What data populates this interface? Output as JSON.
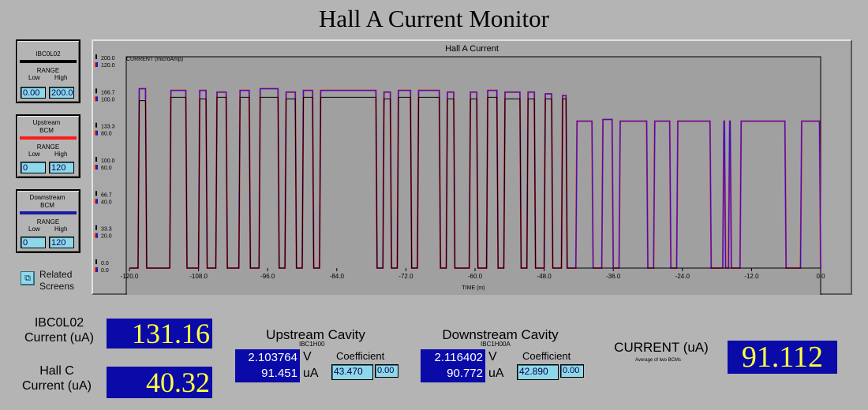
{
  "title": "Hall A Current Monitor",
  "panels": [
    {
      "name": "IBC0L02",
      "range_label": "RANGE",
      "low_label": "Low",
      "high_label": "High",
      "low": "0.00",
      "high": "200.0",
      "color": "#000000"
    },
    {
      "name": "Upstream BCM",
      "range_label": "RANGE",
      "low_label": "Low",
      "high_label": "High",
      "low": "0",
      "high": "120",
      "color": "#ff1a1a"
    },
    {
      "name": "Downstream BCM",
      "range_label": "RANGE",
      "low_label": "Low",
      "high_label": "High",
      "low": "0",
      "high": "120",
      "color": "#1a1aa8"
    }
  ],
  "related": {
    "label": "Related Screens"
  },
  "chart_data": {
    "type": "line",
    "title": "Hall A Current",
    "ylabel": "CURRENT (microAmp)",
    "xlabel": "TIME (m)",
    "xlim": [
      -120,
      0
    ],
    "ylim": [
      0,
      120
    ],
    "x_ticks": [
      "-120.0",
      "-108.0",
      "-96.0",
      "-84.0",
      "-72.0",
      "-60.0",
      "-48.0",
      "-36.0",
      "-24.0",
      "-12.0",
      "0.0"
    ],
    "y_ticks_black": [
      "200.0",
      "166.7",
      "133.3",
      "100.0",
      "66.7",
      "33.3",
      "0.0"
    ],
    "y_ticks_color": [
      "120.0",
      "100.0",
      "80.0",
      "60.0",
      "40.0",
      "20.0",
      "0.0"
    ],
    "grid": false,
    "series": [
      {
        "color": "#1a1ae0",
        "segments": [
          [
            -118.5,
            -117,
            105
          ],
          [
            -113,
            -110,
            104
          ],
          [
            -108,
            -106.5,
            104
          ],
          [
            -105,
            -103,
            103
          ],
          [
            -101,
            -99,
            104
          ],
          [
            -97.5,
            -94,
            105
          ],
          [
            -93,
            -91,
            103
          ],
          [
            -90,
            -88,
            104
          ],
          [
            -87,
            -77,
            104
          ],
          [
            -76,
            -74.5,
            103
          ],
          [
            -73.5,
            -71,
            104
          ],
          [
            -70,
            -66,
            104
          ],
          [
            -65,
            -63.5,
            103
          ],
          [
            -61,
            -59.5,
            103
          ],
          [
            -58,
            -56,
            104
          ],
          [
            -55,
            -52,
            103
          ],
          [
            -51,
            -49.5,
            103
          ],
          [
            -48,
            -46.5,
            102
          ],
          [
            -45,
            -44,
            101
          ],
          [
            -42.5,
            -39.5,
            86
          ],
          [
            -38,
            -36,
            87
          ],
          [
            -35,
            -30,
            86
          ],
          [
            -29,
            -26,
            86
          ],
          [
            -25,
            -19,
            86
          ],
          [
            -17,
            -16.5,
            86
          ],
          [
            -16,
            -15.5,
            86
          ],
          [
            -14,
            -6,
            86
          ],
          [
            -3.5,
            0,
            86
          ]
        ]
      },
      {
        "color": "#000000",
        "segments": [
          [
            -118.5,
            -117,
            98
          ],
          [
            -113,
            -110,
            100
          ],
          [
            -108,
            -106.5,
            99
          ],
          [
            -105,
            -103,
            100
          ],
          [
            -101,
            -99,
            100
          ],
          [
            -97.5,
            -94,
            100
          ],
          [
            -93,
            -91,
            99
          ],
          [
            -90,
            -88,
            100
          ],
          [
            -87,
            -77,
            100
          ],
          [
            -76,
            -74.5,
            99
          ],
          [
            -73.5,
            -71,
            100
          ],
          [
            -70,
            -66,
            100
          ],
          [
            -65,
            -63.5,
            99
          ],
          [
            -61,
            -59.5,
            99
          ],
          [
            -58,
            -56,
            100
          ],
          [
            -55,
            -52,
            99
          ],
          [
            -51,
            -49.5,
            99
          ],
          [
            -48,
            -46.5,
            99
          ],
          [
            -45,
            -44,
            99
          ]
        ]
      }
    ]
  },
  "ibc_current": {
    "label": "IBC0L02 Current (uA)",
    "value": "131.16"
  },
  "hallc_current": {
    "label": "Hall C Current (uA)",
    "value": "40.32"
  },
  "upstream": {
    "title": "Upstream Cavity",
    "sub": "IBC1H00",
    "volts": "2.103764",
    "volts_unit": "V",
    "ua": "91.451",
    "ua_unit": "uA",
    "coef_label": "Coefficient",
    "coef": "43.470",
    "offset": "0.00"
  },
  "downstream": {
    "title": "Downstream Cavity",
    "sub": "IBC1H00A",
    "volts": "2.116402",
    "volts_unit": "V",
    "ua": "90.772",
    "ua_unit": "uA",
    "coef_label": "Coefficient",
    "coef": "42.890",
    "offset": "0.00"
  },
  "current": {
    "label": "CURRENT (uA)",
    "sub": "Average of two BCMs",
    "value": "91.112"
  }
}
